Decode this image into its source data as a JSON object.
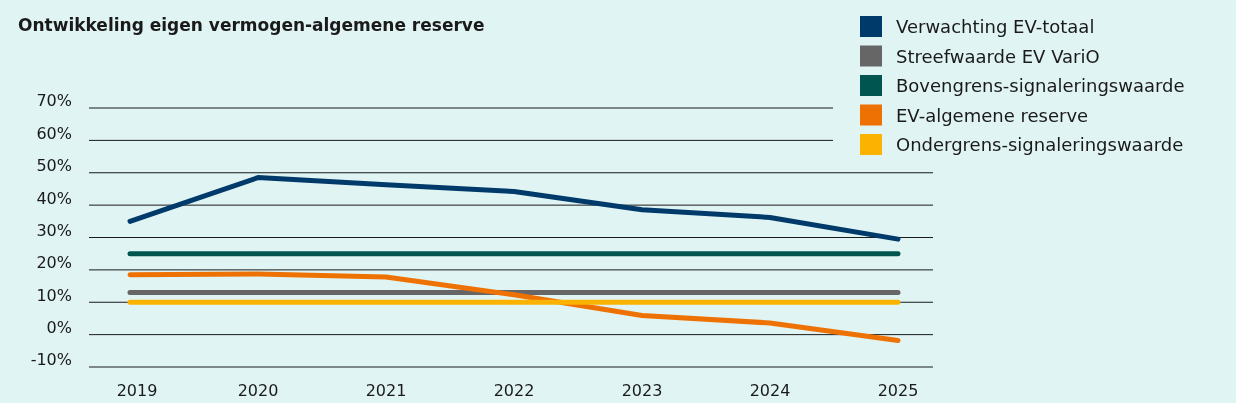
{
  "chart_data": {
    "type": "line",
    "title": "Ontwikkeling eigen vermogen-algemene reserve",
    "categories": [
      "2019",
      "2020",
      "2021",
      "2022",
      "2023",
      "2024",
      "2025"
    ],
    "series": [
      {
        "name": "Verwachting EV-totaal",
        "color": "#003a6b",
        "values": [
          35,
          48.5,
          46.3,
          44.2,
          38.6,
          36.2,
          29.5
        ]
      },
      {
        "name": "Streefwaarde EV VariO",
        "color": "#666666",
        "values": [
          13,
          13,
          13,
          13,
          13,
          13,
          13
        ]
      },
      {
        "name": "Bovengrens-signaleringswaarde",
        "color": "#005550",
        "values": [
          25,
          25,
          25,
          25,
          25,
          25,
          25
        ]
      },
      {
        "name": "EV-algemene reserve",
        "color": "#ee7203",
        "values": [
          18.5,
          18.7,
          17.8,
          12.3,
          5.9,
          3.6,
          -1.8
        ]
      },
      {
        "name": "Ondergrens-signaleringswaarde",
        "color": "#fbb200",
        "values": [
          10,
          10,
          10,
          10,
          10,
          10,
          10
        ]
      }
    ],
    "ylim": [
      -10,
      70
    ],
    "yticks": [
      {
        "value": -10,
        "label": "-10%"
      },
      {
        "value": 0,
        "label": "0%"
      },
      {
        "value": 10,
        "label": "10%"
      },
      {
        "value": 20,
        "label": "20%"
      },
      {
        "value": 30,
        "label": "30%"
      },
      {
        "value": 40,
        "label": "40%"
      },
      {
        "value": 50,
        "label": "50%"
      },
      {
        "value": 60,
        "label": "60%"
      },
      {
        "value": 70,
        "label": "70%"
      }
    ],
    "grid": "y",
    "legend": "top right",
    "marker": "none",
    "line_style": "solid"
  }
}
